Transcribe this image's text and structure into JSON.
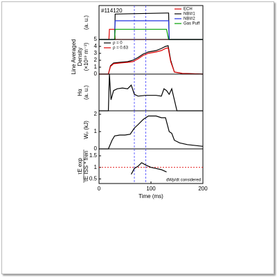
{
  "chart_data": [
    {
      "type": "line",
      "ylabel": [
        "(a. u.)"
      ],
      "annotation": "#114120",
      "legend": "upper right",
      "xlim": [
        0,
        200
      ],
      "ylim": [
        0,
        1
      ],
      "vlines": [
        68,
        90
      ],
      "x": [
        0,
        19,
        20,
        30,
        31,
        130,
        134,
        135,
        200
      ],
      "series": [
        {
          "name": "ECH",
          "color": "#e00000",
          "values": [
            0,
            0,
            0.3,
            0.3,
            0,
            0,
            0,
            0,
            0
          ]
        },
        {
          "name": "NBI#1",
          "color": "#000000",
          "values": [
            0,
            0,
            0,
            0,
            0.75,
            0.78,
            0.78,
            0,
            0
          ]
        },
        {
          "name": "NBI#2",
          "color": "#2030e0",
          "values": [
            0,
            0,
            0,
            0,
            0.55,
            0.55,
            0.55,
            0,
            0
          ]
        },
        {
          "name": "Gas Puff",
          "color": "#00a000",
          "values": [
            0,
            0,
            0,
            0,
            0.3,
            0.3,
            0,
            0,
            0
          ]
        }
      ]
    },
    {
      "type": "line",
      "ylabel": [
        "Line Averaged",
        "Density",
        "(×10¹⁹ m⁻³)"
      ],
      "legend": "upper left",
      "xlim": [
        0,
        200
      ],
      "ylim": [
        0,
        5
      ],
      "yticks": [
        0,
        1,
        2,
        3,
        4,
        5
      ],
      "vlines": [
        68,
        90
      ],
      "x": [
        0,
        18,
        22,
        28,
        40,
        55,
        65,
        75,
        85,
        95,
        110,
        120,
        128,
        133,
        138,
        145,
        160,
        200
      ],
      "series": [
        {
          "name": "ρ =  0",
          "color": "#000000",
          "values": [
            0,
            0,
            1.2,
            1.6,
            1.7,
            1.8,
            2.0,
            2.4,
            2.9,
            3.2,
            3.4,
            3.7,
            4.0,
            4.1,
            2.0,
            0.3,
            0.1,
            0
          ]
        },
        {
          "name": "ρ = 0.63",
          "color": "#e00000",
          "values": [
            0,
            0,
            1.1,
            1.5,
            1.6,
            1.7,
            1.8,
            2.2,
            2.7,
            3.0,
            3.2,
            3.4,
            3.7,
            3.8,
            1.8,
            0.3,
            0.1,
            0
          ]
        }
      ]
    },
    {
      "type": "line",
      "ylabel": [
        "Hα",
        "(a. u.)"
      ],
      "xlim": [
        0,
        200
      ],
      "ylim": [
        0,
        1
      ],
      "vlines": [
        68,
        90
      ],
      "x": [
        0,
        18,
        20,
        23,
        28,
        35,
        45,
        55,
        62,
        68,
        75,
        90,
        110,
        120,
        125,
        130,
        135,
        140,
        145,
        150,
        200
      ],
      "series": [
        {
          "name": null,
          "color": "#000000",
          "values": [
            0,
            0,
            1.0,
            0.3,
            0.55,
            0.6,
            0.62,
            0.6,
            0.7,
            0.45,
            0.4,
            0.42,
            0.42,
            0.4,
            0.6,
            0.55,
            0.45,
            0.6,
            0.3,
            0,
            0
          ]
        }
      ]
    },
    {
      "type": "line",
      "ylabel": [
        "Wₚ (kJ)"
      ],
      "xlim": [
        0,
        200
      ],
      "ylim": [
        0,
        2.2
      ],
      "yticks": [
        0,
        1,
        2
      ],
      "vlines": [
        68,
        90
      ],
      "x": [
        0,
        18,
        25,
        30,
        40,
        50,
        60,
        68,
        75,
        85,
        95,
        110,
        120,
        128,
        135,
        140,
        145,
        155,
        170,
        200
      ],
      "series": [
        {
          "name": null,
          "color": "#000000",
          "values": [
            0,
            0,
            0.5,
            0.75,
            0.8,
            0.8,
            0.85,
            1.2,
            1.4,
            1.7,
            1.9,
            1.9,
            1.8,
            1.8,
            1.0,
            0.9,
            0.5,
            0.35,
            0.25,
            0.15
          ]
        }
      ]
    },
    {
      "type": "line",
      "ylabel": [
        "τE exp",
        "τE ISS * fren"
      ],
      "annotation": "dWp/dt considered",
      "xlim": [
        0,
        200
      ],
      "ylim": [
        0.3,
        1.8
      ],
      "yticks": [
        0.5,
        1,
        1.5
      ],
      "hline": 1,
      "hline_color": "#e00000",
      "vlines": [
        68,
        90
      ],
      "xticks": [
        0,
        100,
        200
      ],
      "xlabel": "Time (ms)",
      "x": [
        62,
        68,
        75,
        82,
        90,
        100,
        110,
        120,
        130
      ],
      "series": [
        {
          "name": null,
          "color": "#000000",
          "values": [
            0.7,
            0.95,
            1.05,
            1.2,
            1.1,
            1.0,
            0.95,
            0.9,
            0.8
          ]
        }
      ]
    }
  ]
}
